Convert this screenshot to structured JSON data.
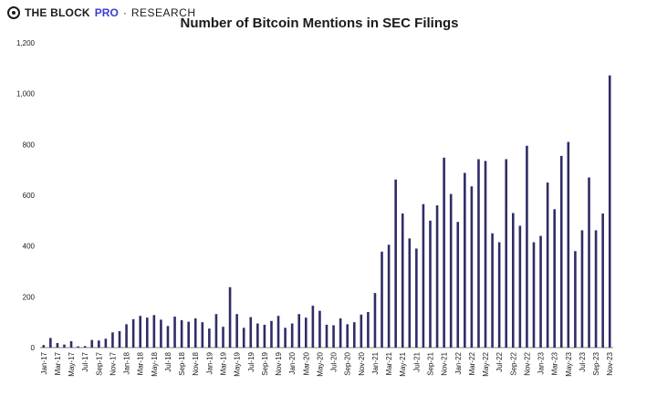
{
  "brand": {
    "main": "THE BLOCK",
    "pro": "PRO",
    "separator": "·",
    "research": "RESEARCH"
  },
  "colors": {
    "bar": "#2f2d68",
    "axis": "#888888",
    "text": "#1a1a1a"
  },
  "chart_data": {
    "type": "bar",
    "title": "Number of Bitcoin Mentions in SEC Filings",
    "xlabel": "",
    "ylabel": "",
    "ylim": [
      0,
      1200
    ],
    "yticks": [
      0,
      200,
      400,
      600,
      800,
      1000,
      1200
    ],
    "ytick_labels": [
      "0",
      "200",
      "400",
      "600",
      "800",
      "1,000",
      "1,200"
    ],
    "grid": false,
    "categories": [
      "Jan-17",
      "Feb-17",
      "Mar-17",
      "Apr-17",
      "May-17",
      "Jun-17",
      "Jul-17",
      "Aug-17",
      "Sep-17",
      "Oct-17",
      "Nov-17",
      "Dec-17",
      "Jan-18",
      "Feb-18",
      "Mar-18",
      "Apr-18",
      "May-18",
      "Jun-18",
      "Jul-18",
      "Aug-18",
      "Sep-18",
      "Oct-18",
      "Nov-18",
      "Dec-18",
      "Jan-19",
      "Feb-19",
      "Mar-19",
      "Apr-19",
      "May-19",
      "Jun-19",
      "Jul-19",
      "Aug-19",
      "Sep-19",
      "Oct-19",
      "Nov-19",
      "Dec-19",
      "Jan-20",
      "Feb-20",
      "Mar-20",
      "Apr-20",
      "May-20",
      "Jun-20",
      "Jul-20",
      "Aug-20",
      "Sep-20",
      "Oct-20",
      "Nov-20",
      "Dec-20",
      "Jan-21",
      "Feb-21",
      "Mar-21",
      "Apr-21",
      "May-21",
      "Jun-21",
      "Jul-21",
      "Aug-21",
      "Sep-21",
      "Oct-21",
      "Nov-21",
      "Dec-21",
      "Jan-22",
      "Feb-22",
      "Mar-22",
      "Apr-22",
      "May-22",
      "Jun-22",
      "Jul-22",
      "Aug-22",
      "Sep-22",
      "Oct-22",
      "Nov-22",
      "Dec-22",
      "Jan-23",
      "Feb-23",
      "Mar-23",
      "Apr-23",
      "May-23",
      "Jun-23",
      "Jul-23",
      "Aug-23",
      "Sep-23",
      "Oct-23",
      "Nov-23"
    ],
    "tick_labels": [
      "Jan-17",
      "Mar-17",
      "May-17",
      "Jul-17",
      "Sep-17",
      "Nov-17",
      "Jan-18",
      "Mar-18",
      "May-18",
      "Jul-18",
      "Sep-18",
      "Nov-18",
      "Jan-19",
      "Mar-19",
      "May-19",
      "Jul-19",
      "Sep-19",
      "Nov-19",
      "Jan-20",
      "Mar-20",
      "May-20",
      "Jul-20",
      "Sep-20",
      "Nov-20",
      "Jan-21",
      "Mar-21",
      "May-21",
      "Jul-21",
      "Sep-21",
      "Nov-21",
      "Jan-22",
      "Mar-22",
      "May-22",
      "Jul-22",
      "Sep-22",
      "Nov-22",
      "Jan-23",
      "Mar-23",
      "May-23",
      "Jul-23",
      "Sep-23",
      "Nov-23"
    ],
    "values": [
      10,
      38,
      18,
      12,
      25,
      5,
      6,
      30,
      28,
      35,
      60,
      65,
      92,
      112,
      125,
      118,
      128,
      110,
      85,
      122,
      108,
      102,
      115,
      100,
      75,
      132,
      82,
      238,
      132,
      78,
      120,
      95,
      90,
      105,
      125,
      78,
      95,
      132,
      118,
      165,
      145,
      90,
      88,
      115,
      92,
      100,
      130,
      140,
      215,
      378,
      405,
      662,
      528,
      430,
      390,
      565,
      500,
      560,
      748,
      605,
      495,
      688,
      635,
      742,
      735,
      450,
      415,
      742,
      530,
      480,
      795,
      415,
      440,
      650,
      545,
      755,
      810,
      380,
      462,
      670,
      462,
      528,
      1072
    ]
  }
}
